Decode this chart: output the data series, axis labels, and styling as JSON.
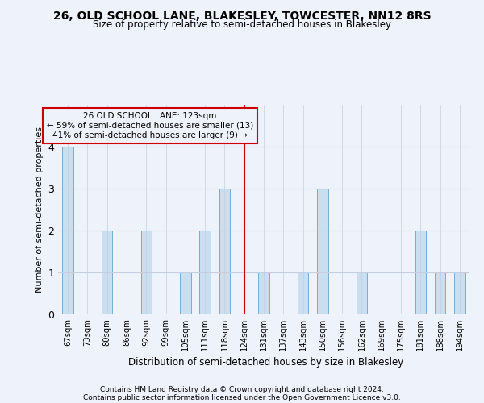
{
  "title": "26, OLD SCHOOL LANE, BLAKESLEY, TOWCESTER, NN12 8RS",
  "subtitle": "Size of property relative to semi-detached houses in Blakesley",
  "xlabel": "Distribution of semi-detached houses by size in Blakesley",
  "ylabel": "Number of semi-detached properties",
  "categories": [
    "67sqm",
    "73sqm",
    "80sqm",
    "86sqm",
    "92sqm",
    "99sqm",
    "105sqm",
    "111sqm",
    "118sqm",
    "124sqm",
    "131sqm",
    "137sqm",
    "143sqm",
    "150sqm",
    "156sqm",
    "162sqm",
    "169sqm",
    "175sqm",
    "181sqm",
    "188sqm",
    "194sqm"
  ],
  "values": [
    4,
    0,
    2,
    0,
    2,
    0,
    1,
    2,
    3,
    0,
    1,
    0,
    1,
    3,
    0,
    1,
    0,
    0,
    2,
    1,
    1
  ],
  "bar_color": "#c9dff0",
  "bar_edge_color": "#7badd1",
  "highlight_index": 9,
  "highlight_line_color": "#cc0000",
  "annotation_title": "26 OLD SCHOOL LANE: 123sqm",
  "annotation_line1": "← 59% of semi-detached houses are smaller (13)",
  "annotation_line2": "41% of semi-detached houses are larger (9) →",
  "annotation_box_color": "#cc0000",
  "ylim": [
    0,
    5
  ],
  "yticks": [
    0,
    1,
    2,
    3,
    4
  ],
  "footer_line1": "Contains HM Land Registry data © Crown copyright and database right 2024.",
  "footer_line2": "Contains public sector information licensed under the Open Government Licence v3.0.",
  "background_color": "#eef2fa",
  "grid_color": "#c5cfe0"
}
